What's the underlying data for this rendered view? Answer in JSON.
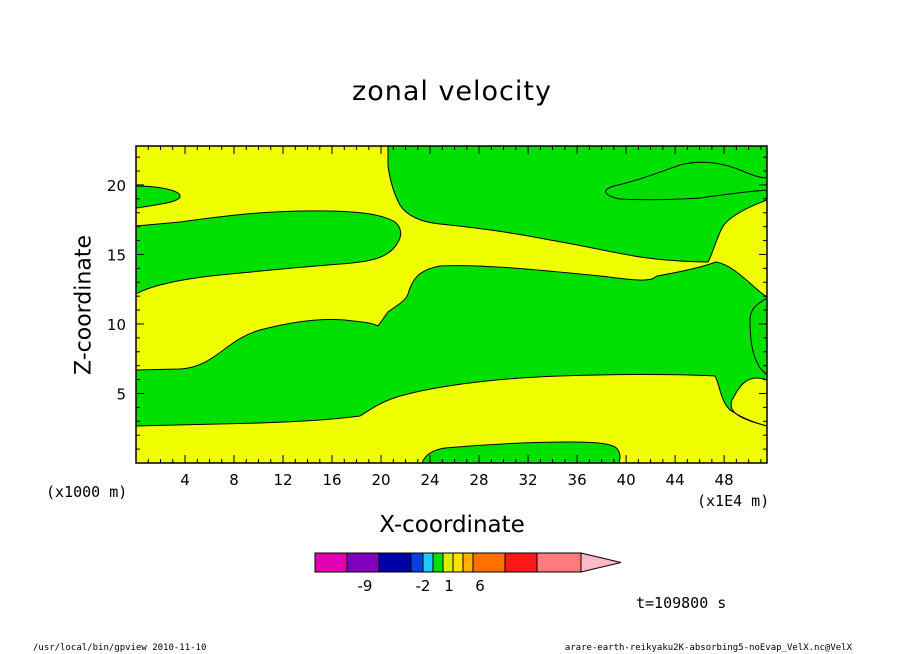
{
  "chart_data": {
    "type": "heatmap",
    "title": "zonal velocity",
    "xlabel": "X-coordinate",
    "ylabel": "Z-coordinate",
    "x_unit_note": "(x1000 m)",
    "x_unit_note_right": "(x1E4 m)",
    "xlim": [
      0,
      51.5
    ],
    "ylim": [
      0,
      22.8
    ],
    "x_ticks": [
      4,
      8,
      12,
      16,
      20,
      24,
      28,
      32,
      36,
      40,
      44,
      48
    ],
    "y_ticks": [
      5,
      10,
      15,
      20
    ],
    "colorbar": {
      "colors": [
        "#e000b0",
        "#8000c0",
        "#0000a8",
        "#0a3fdc",
        "#1ec8ff",
        "#00e000",
        "#d8f000",
        "#ffe000",
        "#ffb000",
        "#ff7000",
        "#ff1a1a",
        "#ff7a7a",
        "#ffb8c8"
      ],
      "labels": [
        "-9",
        "-2",
        "1",
        "6"
      ]
    },
    "regions": {
      "background_color": "#f0ff00",
      "positive_color": "#f0ff00",
      "negative_color": "#00e000"
    },
    "annotation": "t=109800 s"
  },
  "footer": {
    "left": "/usr/local/bin/gpview  2010-11-10",
    "right": "arare-earth-reikyaku2K-absorbing5-noEvap_VelX.nc@VelX"
  }
}
